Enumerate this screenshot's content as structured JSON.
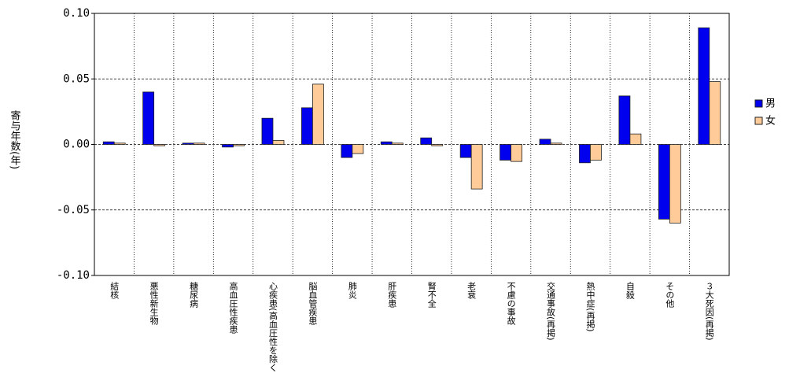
{
  "chart_data": {
    "type": "bar",
    "y_label": "寄与年数(年)",
    "categories": [
      "結核",
      "悪性新生物",
      "糖尿病",
      "高血圧性疾患",
      "心疾患(高血圧性を除く",
      "脳血管疾患",
      "肺炎",
      "肝疾患",
      "腎不全",
      "老衰",
      "不慮の事故",
      "交通事故(再掲)",
      "熱中症(再掲)",
      "自殺",
      "その他",
      "３大死因(再掲)"
    ],
    "series": [
      {
        "name": "男",
        "color": "#0000ee",
        "values": [
          0.002,
          0.04,
          0.001,
          -0.002,
          0.02,
          0.028,
          -0.01,
          0.002,
          0.005,
          -0.01,
          -0.012,
          0.004,
          -0.014,
          0.037,
          -0.057,
          0.089
        ]
      },
      {
        "name": "女",
        "color": "#ffcc99",
        "values": [
          0.001,
          -0.001,
          0.001,
          -0.001,
          0.003,
          0.046,
          -0.007,
          0.001,
          -0.001,
          -0.034,
          -0.013,
          0.001,
          -0.012,
          0.008,
          -0.06,
          0.048
        ]
      }
    ],
    "ylim": [
      -0.1,
      0.1
    ],
    "yticks": [
      {
        "value": 0.1,
        "label": "0.10"
      },
      {
        "value": 0.05,
        "label": "0.05"
      },
      {
        "value": 0,
        "label": "0.00"
      },
      {
        "value": -0.05,
        "label": "-0.05"
      },
      {
        "value": -0.1,
        "label": "-0.10"
      }
    ],
    "grid": true,
    "legend": "right"
  }
}
